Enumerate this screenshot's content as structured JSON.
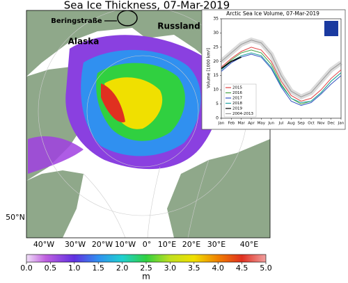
{
  "map": {
    "title": "Sea Ice Thickness, 07-Mar-2019",
    "place_labels": [
      "Beringstraße",
      "Alaska",
      "Russland"
    ],
    "lat_label": "50°N",
    "lon_labels": [
      "40°W",
      "30°W",
      "20°W",
      "10°W",
      "0°",
      "10°E",
      "20°E",
      "30°E",
      "40°E"
    ],
    "colorbar": {
      "unit": "m",
      "lim": [
        0,
        5
      ],
      "ticks": [
        {
          "value": 0,
          "label": "0.0"
        },
        {
          "value": 0.5,
          "label": "0.5"
        },
        {
          "value": 1,
          "label": "1.0"
        },
        {
          "value": 1.5,
          "label": "1.5"
        },
        {
          "value": 2,
          "label": "2.0"
        },
        {
          "value": 2.5,
          "label": "2.5"
        },
        {
          "value": 3,
          "label": "3.0"
        },
        {
          "value": 3.5,
          "label": "3.5"
        },
        {
          "value": 4,
          "label": "4.0"
        },
        {
          "value": 4.5,
          "label": "4.5"
        },
        {
          "value": 5,
          "label": "5.0"
        }
      ]
    }
  },
  "chart_data": {
    "type": "line",
    "title": "Arctic Sea Ice Volume, 07-Mar-2019",
    "ylabel": "Volume [1000 km³]",
    "categories": [
      "Jan",
      "Feb",
      "Mar",
      "Apr",
      "May",
      "Jun",
      "Jul",
      "Aug",
      "Sep",
      "Oct",
      "Nov",
      "Dec",
      "Jan"
    ],
    "ylim": [
      0,
      35
    ],
    "yticks": [
      0,
      5,
      10,
      15,
      20,
      25,
      30,
      35
    ],
    "legend": "lower left",
    "series": [
      {
        "name": "2015",
        "color": "#e04040",
        "values": [
          18,
          21,
          23.5,
          25,
          24,
          20,
          13,
          8,
          6,
          7,
          10,
          14,
          17
        ]
      },
      {
        "name": "2016",
        "color": "#40a040",
        "values": [
          17.5,
          20.5,
          23,
          24,
          23,
          19,
          12,
          7,
          5,
          6,
          9,
          13,
          16
        ]
      },
      {
        "name": "2017",
        "color": "#3050c0",
        "values": [
          16.5,
          19.5,
          21.5,
          22.5,
          21.5,
          17.5,
          11,
          6,
          4.5,
          5.5,
          8.5,
          12,
          15
        ]
      },
      {
        "name": "2018",
        "color": "#20a0a0",
        "values": [
          17,
          20,
          22,
          23,
          22,
          18,
          11.5,
          7,
          5.5,
          6,
          9,
          13,
          16
        ]
      },
      {
        "name": "2019",
        "color": "#000000",
        "values": [
          17.5,
          20,
          21.5,
          null,
          null,
          null,
          null,
          null,
          null,
          null,
          null,
          null,
          null
        ]
      },
      {
        "name": "2004-2013",
        "color": "#999999",
        "values": [
          20,
          23,
          26,
          27.5,
          26.5,
          22.5,
          15,
          9.5,
          7.5,
          9,
          13,
          17,
          19.5
        ]
      }
    ]
  }
}
